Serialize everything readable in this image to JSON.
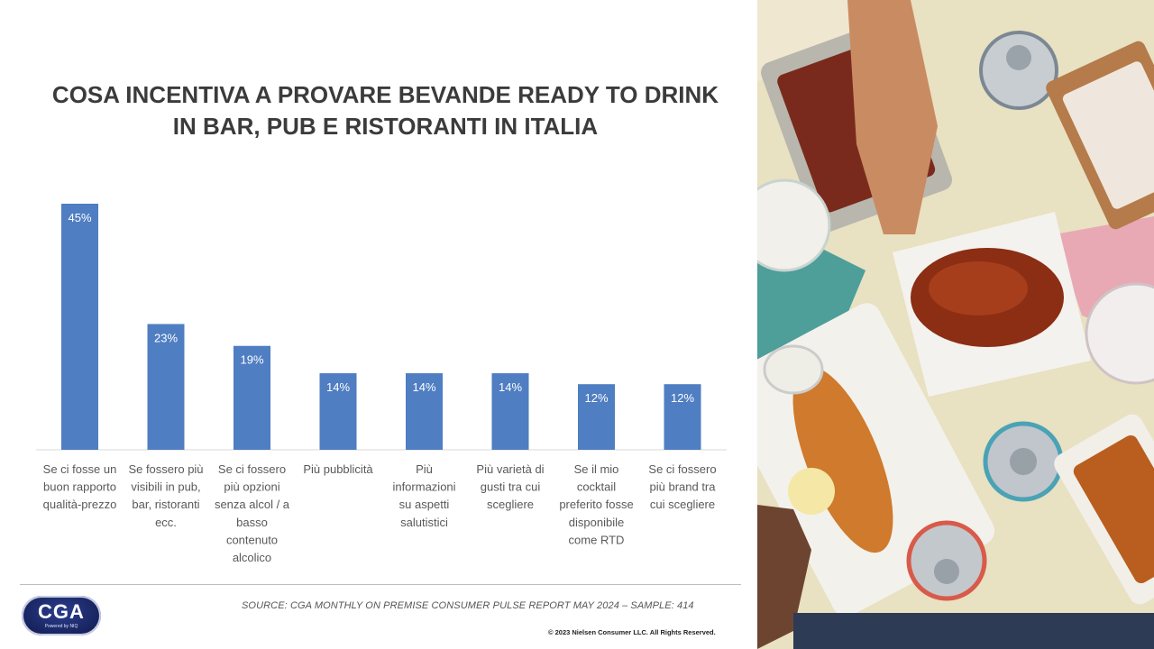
{
  "title": {
    "line1": "COSA INCENTIVA A PROVARE BEVANDE READY TO DRINK",
    "line2": "IN BAR, PUB E RISTORANTI IN ITALIA"
  },
  "footer": {
    "source": "SOURCE: CGA MONTHLY  ON PREMISE CONSUMER PULSE REPORT MAY 2024 – SAMPLE: 414",
    "copyright": "© 2023 Nielsen Consumer LLC. All Rights Reserved."
  },
  "logo": {
    "name": "CGA",
    "tagline": "Powered by NIQ"
  },
  "colors": {
    "bar": "#4f7ec2",
    "label": "#ffffff",
    "axis_text": "#595959",
    "title": "#3b3b3b"
  },
  "photo": {
    "icon": "food-and-drinks-photo"
  },
  "chart_data": {
    "type": "bar",
    "title": "COSA INCENTIVA A PROVARE BEVANDE READY TO DRINK IN BAR, PUB E RISTORANTI IN ITALIA",
    "xlabel": "",
    "ylabel": "",
    "ylim": [
      0,
      45
    ],
    "grid": false,
    "categories": [
      [
        "Se ci fosse un",
        "buon rapporto",
        "qualità-prezzo"
      ],
      [
        "Se fossero più",
        "visibili in pub,",
        "bar, ristoranti",
        "ecc."
      ],
      [
        "Se ci fossero",
        "più opzioni",
        "senza alcol / a",
        "basso",
        "contenuto",
        "alcolico"
      ],
      [
        "Più pubblicità"
      ],
      [
        "Più",
        "informazioni",
        "su aspetti",
        "salutistici"
      ],
      [
        "Più varietà di",
        "gusti tra cui",
        "scegliere"
      ],
      [
        "Se il mio",
        "cocktail",
        "preferito fosse",
        "disponibile",
        "come RTD"
      ],
      [
        "Se ci fossero",
        "più brand tra",
        "cui scegliere"
      ]
    ],
    "values": [
      45,
      23,
      19,
      14,
      14,
      14,
      12,
      12
    ],
    "data_labels": [
      "45%",
      "23%",
      "19%",
      "14%",
      "14%",
      "14%",
      "12%",
      "12%"
    ]
  }
}
